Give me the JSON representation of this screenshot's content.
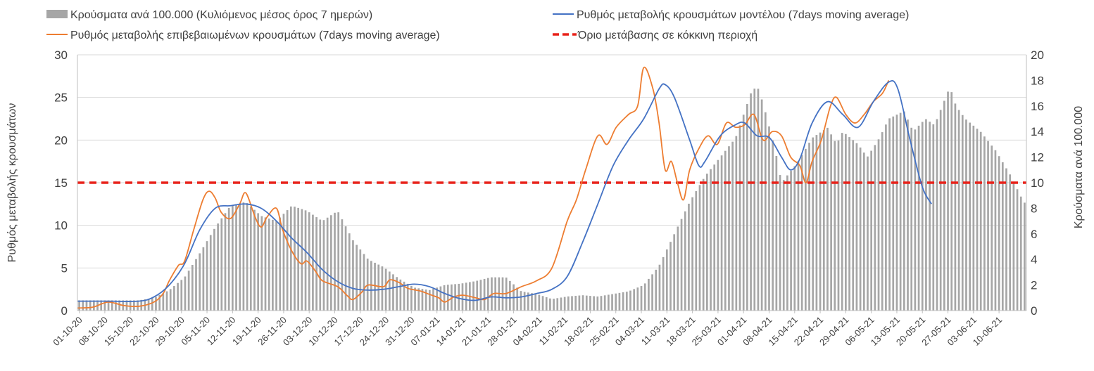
{
  "chart_data": {
    "type": "bar+line",
    "title": "",
    "legend": {
      "bars_label": "Κρούσματα ανά 100.000 (Κυλιόμενος μέσος όρος 7 ημερών)",
      "model_label": "Ρυθμός μεταβολής κρουσμάτων μοντέλου (7days moving average)",
      "confirmed_label": "Ρυθμός μεταβολής επιβεβαιωμένων κρουσμάτων (7days moving average)",
      "threshold_label": "Όριο μετάβασης σε κόκκινη περιοχή"
    },
    "colors": {
      "bars": "#a6a6a6",
      "model": "#4472c4",
      "confirmed": "#ed7d31",
      "threshold": "#e8221a",
      "grid": "#d9d9d9",
      "axis": "#bfbfbf",
      "text": "#404040"
    },
    "ylabel_left": "Ρυθμός μεταβολής κρουσμάτων",
    "ylabel_right": "Κρούσματα ανά 100.000",
    "ylim_left": [
      0,
      30
    ],
    "yticks_left": [
      "0",
      "5",
      "10",
      "15",
      "20",
      "25",
      "30"
    ],
    "ylim_right": [
      0,
      20
    ],
    "yticks_right": [
      "0",
      "2",
      "4",
      "6",
      "8",
      "10",
      "12",
      "14",
      "16",
      "18",
      "20"
    ],
    "threshold_value": 15,
    "num_days": 260,
    "x_tick_labels": [
      "01-10-20",
      "08-10-20",
      "15-10-20",
      "22-10-20",
      "29-10-20",
      "05-11-20",
      "12-11-20",
      "19-11-20",
      "26-11-20",
      "03-12-20",
      "10-12-20",
      "17-12-20",
      "24-12-20",
      "31-12-20",
      "07-01-21",
      "14-01-21",
      "21-01-21",
      "28-01-21",
      "04-02-21",
      "11-02-21",
      "18-02-21",
      "25-02-21",
      "04-03-21",
      "11-03-21",
      "18-03-21",
      "25-03-21",
      "01-04-21",
      "08-04-21",
      "15-04-21",
      "22-04-21",
      "29-04-21",
      "06-05-21",
      "13-05-21",
      "20-05-21",
      "27-05-21",
      "03-06-21",
      "10-06-21"
    ],
    "bars_cases_per_100k_keypoints": [
      [
        0,
        0.8
      ],
      [
        10,
        0.8
      ],
      [
        20,
        0.8
      ],
      [
        25,
        1.0
      ],
      [
        30,
        1.6
      ],
      [
        35,
        2.6
      ],
      [
        40,
        4.5
      ],
      [
        45,
        6.5
      ],
      [
        50,
        8.2
      ],
      [
        55,
        8.5
      ],
      [
        60,
        7.4
      ],
      [
        65,
        7.0
      ],
      [
        70,
        8.2
      ],
      [
        75,
        7.8
      ],
      [
        80,
        7.0
      ],
      [
        85,
        7.8
      ],
      [
        90,
        5.5
      ],
      [
        95,
        4.0
      ],
      [
        100,
        3.4
      ],
      [
        105,
        2.5
      ],
      [
        110,
        1.8
      ],
      [
        115,
        1.6
      ],
      [
        120,
        2.0
      ],
      [
        125,
        2.1
      ],
      [
        130,
        2.3
      ],
      [
        135,
        2.6
      ],
      [
        140,
        2.6
      ],
      [
        145,
        1.5
      ],
      [
        150,
        1.3
      ],
      [
        155,
        0.9
      ],
      [
        160,
        1.1
      ],
      [
        165,
        1.2
      ],
      [
        170,
        1.1
      ],
      [
        175,
        1.3
      ],
      [
        180,
        1.5
      ],
      [
        185,
        2.0
      ],
      [
        190,
        3.5
      ],
      [
        195,
        6.0
      ],
      [
        200,
        8.5
      ],
      [
        205,
        10.5
      ],
      [
        210,
        12.0
      ],
      [
        215,
        13.5
      ],
      [
        220,
        17.0
      ],
      [
        222,
        17.6
      ],
      [
        224,
        16.2
      ],
      [
        228,
        12.5
      ],
      [
        230,
        10.0
      ],
      [
        235,
        11.5
      ],
      [
        240,
        13.5
      ],
      [
        245,
        14.3
      ],
      [
        248,
        13.0
      ],
      [
        250,
        14.0
      ],
      [
        255,
        13.0
      ],
      [
        258,
        12.0
      ],
      [
        262,
        13.5
      ],
      [
        265,
        15.0
      ],
      [
        270,
        15.6
      ],
      [
        273,
        14.0
      ],
      [
        277,
        15.0
      ],
      [
        280,
        14.5
      ],
      [
        285,
        17.5
      ],
      [
        287,
        16.0
      ],
      [
        290,
        15.0
      ],
      [
        295,
        14.0
      ],
      [
        300,
        12.5
      ],
      [
        305,
        10.5
      ],
      [
        308,
        9.0
      ],
      [
        310,
        8.2
      ]
    ],
    "model_rate_keypoints": [
      [
        0,
        1.1
      ],
      [
        10,
        1.1
      ],
      [
        20,
        1.1
      ],
      [
        25,
        1.6
      ],
      [
        30,
        3.0
      ],
      [
        35,
        5.5
      ],
      [
        40,
        9.5
      ],
      [
        45,
        12.0
      ],
      [
        50,
        12.3
      ],
      [
        55,
        12.5
      ],
      [
        60,
        12.0
      ],
      [
        65,
        10.5
      ],
      [
        70,
        8.5
      ],
      [
        75,
        6.8
      ],
      [
        80,
        4.8
      ],
      [
        85,
        3.4
      ],
      [
        90,
        2.6
      ],
      [
        95,
        2.4
      ],
      [
        100,
        2.5
      ],
      [
        105,
        2.8
      ],
      [
        110,
        3.1
      ],
      [
        115,
        2.8
      ],
      [
        120,
        2.0
      ],
      [
        125,
        1.4
      ],
      [
        130,
        1.2
      ],
      [
        135,
        1.6
      ],
      [
        140,
        1.5
      ],
      [
        145,
        1.6
      ],
      [
        150,
        2.0
      ],
      [
        155,
        2.5
      ],
      [
        160,
        4.0
      ],
      [
        165,
        8.0
      ],
      [
        170,
        12.5
      ],
      [
        175,
        17.0
      ],
      [
        180,
        20.0
      ],
      [
        185,
        22.5
      ],
      [
        190,
        26.0
      ],
      [
        192,
        26.5
      ],
      [
        195,
        25.0
      ],
      [
        200,
        20.0
      ],
      [
        203,
        17.0
      ],
      [
        205,
        17.5
      ],
      [
        210,
        20.5
      ],
      [
        215,
        21.8
      ],
      [
        218,
        22.0
      ],
      [
        222,
        20.5
      ],
      [
        226,
        20.3
      ],
      [
        230,
        18.0
      ],
      [
        233,
        16.5
      ],
      [
        236,
        17.8
      ],
      [
        240,
        22.0
      ],
      [
        245,
        24.5
      ],
      [
        250,
        23.0
      ],
      [
        255,
        21.5
      ],
      [
        260,
        24.5
      ],
      [
        265,
        26.8
      ],
      [
        268,
        26.0
      ],
      [
        272,
        20.0
      ],
      [
        276,
        14.5
      ],
      [
        279,
        12.5
      ]
    ],
    "confirmed_rate_keypoints": [
      [
        0,
        0.3
      ],
      [
        5,
        0.4
      ],
      [
        10,
        1.0
      ],
      [
        15,
        0.6
      ],
      [
        20,
        0.5
      ],
      [
        25,
        1.0
      ],
      [
        28,
        2.0
      ],
      [
        30,
        3.5
      ],
      [
        33,
        5.3
      ],
      [
        35,
        5.8
      ],
      [
        38,
        9.5
      ],
      [
        41,
        13.0
      ],
      [
        43,
        14.0
      ],
      [
        45,
        13.2
      ],
      [
        47,
        11.5
      ],
      [
        50,
        10.8
      ],
      [
        53,
        12.5
      ],
      [
        55,
        13.8
      ],
      [
        58,
        11.0
      ],
      [
        60,
        9.8
      ],
      [
        62,
        11.0
      ],
      [
        65,
        12.0
      ],
      [
        67,
        9.5
      ],
      [
        70,
        7.0
      ],
      [
        73,
        5.5
      ],
      [
        75,
        5.8
      ],
      [
        78,
        4.5
      ],
      [
        80,
        3.5
      ],
      [
        85,
        2.8
      ],
      [
        88,
        1.8
      ],
      [
        90,
        1.3
      ],
      [
        93,
        2.2
      ],
      [
        95,
        3.0
      ],
      [
        100,
        2.8
      ],
      [
        102,
        3.6
      ],
      [
        105,
        3.3
      ],
      [
        108,
        2.6
      ],
      [
        112,
        2.3
      ],
      [
        115,
        1.9
      ],
      [
        118,
        1.5
      ],
      [
        120,
        1.0
      ],
      [
        123,
        1.6
      ],
      [
        126,
        1.8
      ],
      [
        130,
        1.5
      ],
      [
        133,
        1.3
      ],
      [
        136,
        2.0
      ],
      [
        140,
        2.0
      ],
      [
        145,
        2.8
      ],
      [
        150,
        3.5
      ],
      [
        155,
        5.0
      ],
      [
        160,
        10.5
      ],
      [
        163,
        13.0
      ],
      [
        166,
        16.5
      ],
      [
        170,
        20.5
      ],
      [
        173,
        19.5
      ],
      [
        176,
        21.5
      ],
      [
        180,
        23.0
      ],
      [
        183,
        24.0
      ],
      [
        185,
        28.5
      ],
      [
        188,
        26.0
      ],
      [
        190,
        22.0
      ],
      [
        192,
        16.5
      ],
      [
        194,
        17.5
      ],
      [
        196,
        15.0
      ],
      [
        198,
        13.0
      ],
      [
        200,
        16.5
      ],
      [
        203,
        19.0
      ],
      [
        206,
        20.5
      ],
      [
        209,
        19.5
      ],
      [
        212,
        22.0
      ],
      [
        215,
        21.5
      ],
      [
        218,
        21.8
      ],
      [
        221,
        23.0
      ],
      [
        224,
        20.0
      ],
      [
        227,
        21.0
      ],
      [
        230,
        20.5
      ],
      [
        233,
        18.0
      ],
      [
        236,
        17.0
      ],
      [
        238,
        15.0
      ],
      [
        240,
        17.5
      ],
      [
        243,
        20.0
      ],
      [
        246,
        24.0
      ],
      [
        248,
        25.0
      ],
      [
        251,
        23.0
      ],
      [
        254,
        22.0
      ],
      [
        257,
        23.0
      ],
      [
        260,
        24.5
      ],
      [
        263,
        25.5
      ],
      [
        265,
        27.0
      ]
    ]
  }
}
